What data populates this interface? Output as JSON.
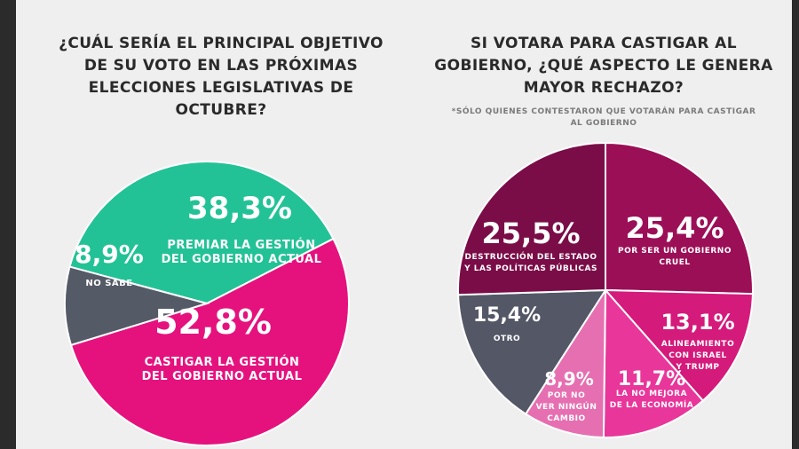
{
  "left": {
    "question": "¿CUÁL SERÍA EL PRINCIPAL OBJETIVO DE SU VOTO EN LAS PRÓXIMAS ELECCIONES LEGISLATIVAS DE OCTUBRE?"
  },
  "right": {
    "question": "SI VOTARA PARA CASTIGAR AL GOBIERNO, ¿QUÉ ASPECTO LE GENERA MAYOR RECHAZO?",
    "note": "*SÓLO QUIENES CONTESTARON QUE VOTARÁN PARA CASTIGAR AL GOBIERNO"
  },
  "chart_data": [
    {
      "type": "pie",
      "title": "¿CUÁL SERÍA EL PRINCIPAL OBJETIVO DE SU VOTO EN LAS PRÓXIMAS ELECCIONES LEGISLATIVAS DE OCTUBRE?",
      "slices": [
        {
          "value": 38.3,
          "value_label": "38,3%",
          "label_lines": [
            "PREMIAR LA GESTIÓN",
            "DEL GOBIERNO ACTUAL"
          ],
          "color": "#23c296"
        },
        {
          "value": 52.8,
          "value_label": "52,8%",
          "label_lines": [
            "CASTIGAR LA GESTIÓN",
            "DEL GOBIERNO ACTUAL"
          ],
          "color": "#e5127e"
        },
        {
          "value": 8.9,
          "value_label": "8,9%",
          "label_lines": [
            "NO SABE"
          ],
          "color": "#555a67"
        }
      ]
    },
    {
      "type": "pie",
      "title": "SI VOTARA PARA CASTIGAR AL GOBIERNO, ¿QUÉ ASPECTO LE GENERA MAYOR RECHAZO?",
      "slices": [
        {
          "value": 25.4,
          "value_label": "25,4%",
          "label_lines": [
            "POR SER UN GOBIERNO",
            "CRUEL"
          ],
          "color": "#9b0f57"
        },
        {
          "value": 13.1,
          "value_label": "13,1%",
          "label_lines": [
            "ALINEAMIENTO",
            "CON ISRAEL",
            "Y TRUMP"
          ],
          "color": "#d41a7b"
        },
        {
          "value": 11.7,
          "value_label": "11,7%",
          "label_lines": [
            "LA NO MEJORA",
            "DE LA ECONOMÍA"
          ],
          "color": "#e8369a"
        },
        {
          "value": 8.9,
          "value_label": "8,9%",
          "label_lines": [
            "POR NO",
            "VER NINGÚN",
            "CAMBIO"
          ],
          "color": "#e66fb1"
        },
        {
          "value": 15.4,
          "value_label": "15,4%",
          "label_lines": [
            "OTRO"
          ],
          "color": "#535766"
        },
        {
          "value": 25.5,
          "value_label": "25,5%",
          "label_lines": [
            "DESTRUCCIÓN DEL ESTADO",
            "Y LAS POLÍTICAS PÚBLICAS"
          ],
          "color": "#7a0d47"
        }
      ]
    }
  ]
}
